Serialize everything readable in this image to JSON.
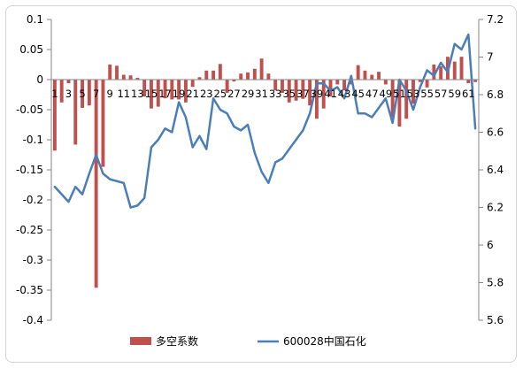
{
  "chart_data": {
    "type": "bar+line",
    "title": "",
    "categories": [
      "1",
      "2",
      "3",
      "4",
      "5",
      "6",
      "7",
      "8",
      "9",
      "10",
      "11",
      "12",
      "13",
      "14",
      "15",
      "16",
      "17",
      "18",
      "19",
      "20",
      "21",
      "22",
      "23",
      "24",
      "25",
      "26",
      "27",
      "28",
      "29",
      "30",
      "31",
      "32",
      "33",
      "34",
      "35",
      "36",
      "37",
      "38",
      "39",
      "40",
      "41",
      "42",
      "43",
      "44",
      "45",
      "46",
      "47",
      "48",
      "49",
      "50",
      "51",
      "52",
      "53",
      "54",
      "55",
      "56",
      "57",
      "58",
      "59",
      "60",
      "61",
      "62"
    ],
    "category_label_every": 2,
    "left_axis": {
      "ylim": [
        -0.4,
        0.1
      ],
      "ticks": [
        "0.1",
        "0.05",
        "0",
        "-0.05",
        "-0.1",
        "-0.15",
        "-0.2",
        "-0.25",
        "-0.3",
        "-0.35",
        "-0.4"
      ],
      "tick_values": [
        0.1,
        0.05,
        0,
        -0.05,
        -0.1,
        -0.15,
        -0.2,
        -0.25,
        -0.3,
        -0.35,
        -0.4
      ]
    },
    "right_axis": {
      "ylim": [
        5.6,
        7.2
      ],
      "ticks": [
        "7.2",
        "7",
        "6.8",
        "6.6",
        "6.4",
        "6.2",
        "6",
        "5.8",
        "5.6"
      ],
      "tick_values": [
        7.2,
        7.0,
        6.8,
        6.6,
        6.4,
        6.2,
        6.0,
        5.8,
        5.6
      ]
    },
    "series": [
      {
        "name": "多空系数",
        "kind": "bar",
        "axis": "left",
        "color": "#c0504d",
        "values": [
          -0.118,
          -0.038,
          -0.006,
          -0.108,
          -0.047,
          -0.043,
          -0.346,
          -0.145,
          0.025,
          0.023,
          0.008,
          0.007,
          0.003,
          -0.028,
          -0.048,
          -0.045,
          -0.031,
          -0.033,
          -0.033,
          -0.038,
          -0.012,
          0.004,
          0.015,
          0.015,
          0.026,
          -0.022,
          -0.003,
          0.01,
          0.012,
          0.018,
          0.035,
          0.01,
          -0.018,
          -0.022,
          -0.038,
          -0.035,
          -0.032,
          -0.043,
          -0.065,
          -0.048,
          -0.028,
          -0.008,
          -0.018,
          -0.008,
          0.024,
          0.015,
          0.008,
          0.013,
          -0.008,
          -0.062,
          -0.078,
          -0.065,
          -0.04,
          -0.004,
          -0.013,
          0.025,
          0.022,
          0.038,
          0.03,
          0.038,
          -0.006,
          -0.004
        ]
      },
      {
        "name": "600028中国石化",
        "kind": "line",
        "axis": "right",
        "color": "#4a7ebb",
        "values": [
          6.31,
          6.27,
          6.23,
          6.31,
          6.27,
          6.38,
          6.48,
          6.38,
          6.35,
          6.34,
          6.33,
          6.2,
          6.21,
          6.25,
          6.52,
          6.56,
          6.62,
          6.6,
          6.76,
          6.68,
          6.52,
          6.58,
          6.51,
          6.78,
          6.72,
          6.7,
          6.63,
          6.61,
          6.64,
          6.49,
          6.39,
          6.33,
          6.44,
          6.46,
          6.51,
          6.56,
          6.61,
          6.7,
          6.86,
          6.86,
          6.82,
          6.84,
          6.78,
          6.9,
          6.7,
          6.7,
          6.68,
          6.73,
          6.78,
          6.65,
          6.88,
          6.82,
          6.72,
          6.84,
          6.93,
          6.9,
          6.97,
          6.92,
          7.07,
          7.04,
          7.12,
          6.62
        ]
      }
    ],
    "legend": {
      "position": "bottom"
    },
    "grid": false
  }
}
